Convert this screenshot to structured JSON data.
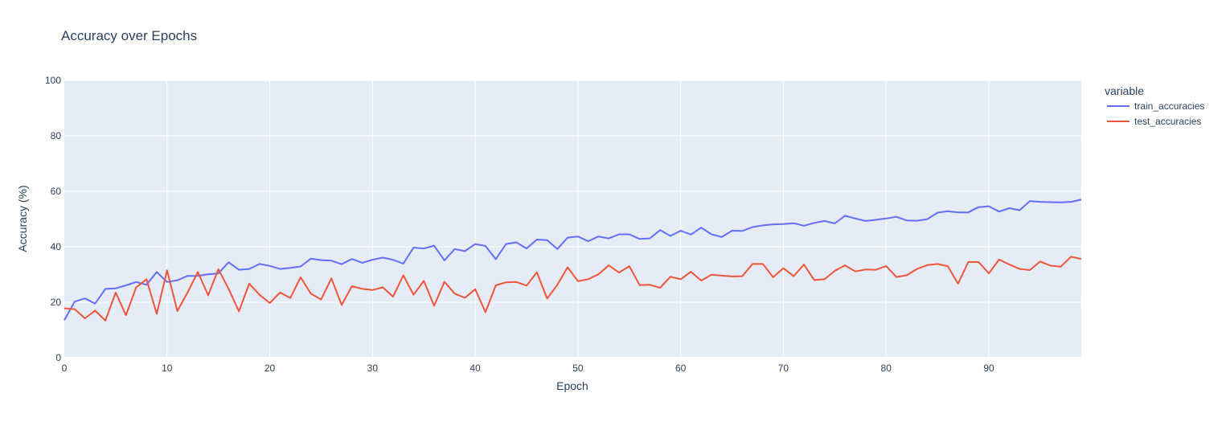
{
  "chart_data": {
    "type": "line",
    "title": "Accuracy over Epochs",
    "xlabel": "Epoch",
    "ylabel": "Accuracy (%)",
    "xlim": [
      0,
      99
    ],
    "ylim": [
      0,
      100
    ],
    "xticks": [
      0,
      10,
      20,
      30,
      40,
      50,
      60,
      70,
      80,
      90
    ],
    "yticks": [
      0,
      20,
      40,
      60,
      80,
      100
    ],
    "grid": true,
    "legend": {
      "title": "variable",
      "placement": "right"
    },
    "series": [
      {
        "name": "train_accuracies",
        "color": "#636efa",
        "x": [
          0,
          1,
          2,
          3,
          4,
          5,
          6,
          7,
          8,
          9,
          10,
          11,
          12,
          13,
          14,
          15,
          16,
          17,
          18,
          19,
          20,
          21,
          22,
          23,
          24,
          25,
          26,
          27,
          28,
          29,
          30,
          31,
          32,
          33,
          34,
          35,
          36,
          37,
          38,
          39,
          40,
          41,
          42,
          43,
          44,
          45,
          46,
          47,
          48,
          49,
          50,
          51,
          52,
          53,
          54,
          55,
          56,
          57,
          58,
          59,
          60,
          61,
          62,
          63,
          64,
          65,
          66,
          67,
          68,
          69,
          70,
          71,
          72,
          73,
          74,
          75,
          76,
          77,
          78,
          79,
          80,
          81,
          82,
          83,
          84,
          85,
          86,
          87,
          88,
          89,
          90,
          91,
          92,
          93,
          94,
          95,
          96,
          97,
          98,
          99
        ],
        "values": [
          13.5,
          20.2,
          21.4,
          19.5,
          24.8,
          25.0,
          26.1,
          27.3,
          26.3,
          30.9,
          27.3,
          27.9,
          29.5,
          29.5,
          30.1,
          30.4,
          34.4,
          31.7,
          32.0,
          33.8,
          33.1,
          32.0,
          32.4,
          32.9,
          35.7,
          35.2,
          35.0,
          33.7,
          35.6,
          34.2,
          35.3,
          36.1,
          35.3,
          33.9,
          39.7,
          39.4,
          40.4,
          35.1,
          39.2,
          38.4,
          41.0,
          40.3,
          35.5,
          41.0,
          41.6,
          39.4,
          42.6,
          42.4,
          39.2,
          43.3,
          43.7,
          42.0,
          43.7,
          43.0,
          44.5,
          44.5,
          42.8,
          43.0,
          46.0,
          43.9,
          45.8,
          44.4,
          46.9,
          44.5,
          43.5,
          45.8,
          45.7,
          47.1,
          47.7,
          48.1,
          48.2,
          48.5,
          47.6,
          48.6,
          49.3,
          48.4,
          51.2,
          50.2,
          49.3,
          49.7,
          50.2,
          50.8,
          49.5,
          49.4,
          49.9,
          52.3,
          52.8,
          52.4,
          52.4,
          54.3,
          54.6,
          52.7,
          53.9,
          53.2,
          56.5,
          56.2,
          56.1,
          56.0,
          56.2,
          57.0
        ]
      },
      {
        "name": "test_accuracies",
        "color": "#ef553b",
        "x": [
          0,
          1,
          2,
          3,
          4,
          5,
          6,
          7,
          8,
          9,
          10,
          11,
          12,
          13,
          14,
          15,
          16,
          17,
          18,
          19,
          20,
          21,
          22,
          23,
          24,
          25,
          26,
          27,
          28,
          29,
          30,
          31,
          32,
          33,
          34,
          35,
          36,
          37,
          38,
          39,
          40,
          41,
          42,
          43,
          44,
          45,
          46,
          47,
          48,
          49,
          50,
          51,
          52,
          53,
          54,
          55,
          56,
          57,
          58,
          59,
          60,
          61,
          62,
          63,
          64,
          65,
          66,
          67,
          68,
          69,
          70,
          71,
          72,
          73,
          74,
          75,
          76,
          77,
          78,
          79,
          80,
          81,
          82,
          83,
          84,
          85,
          86,
          87,
          88,
          89,
          90,
          91,
          92,
          93,
          94,
          95,
          96,
          97,
          98,
          99
        ],
        "values": [
          17.8,
          17.5,
          14.2,
          17.0,
          13.4,
          23.5,
          15.3,
          25.4,
          28.3,
          15.8,
          31.5,
          16.8,
          23.5,
          30.9,
          22.5,
          31.9,
          24.8,
          16.7,
          26.7,
          22.7,
          19.7,
          23.5,
          21.5,
          29.0,
          23.1,
          21.0,
          28.6,
          19.0,
          25.8,
          24.8,
          24.4,
          25.4,
          22.0,
          29.7,
          22.7,
          27.7,
          18.7,
          27.4,
          23.1,
          21.6,
          24.7,
          16.4,
          26.1,
          27.2,
          27.3,
          26.0,
          30.8,
          21.3,
          26.3,
          32.6,
          27.6,
          28.3,
          30.1,
          33.3,
          30.7,
          33.0,
          26.2,
          26.3,
          25.2,
          29.2,
          28.3,
          31.0,
          27.8,
          29.9,
          29.6,
          29.3,
          29.4,
          33.8,
          33.8,
          29.0,
          32.3,
          29.4,
          33.6,
          28.0,
          28.3,
          31.3,
          33.3,
          31.1,
          31.8,
          31.7,
          33.0,
          29.1,
          29.7,
          32.0,
          33.4,
          33.8,
          33.0,
          26.7,
          34.5,
          34.5,
          30.4,
          35.4,
          33.6,
          32.0,
          31.6,
          34.7,
          33.2,
          32.8,
          36.4,
          35.6
        ]
      }
    ]
  }
}
